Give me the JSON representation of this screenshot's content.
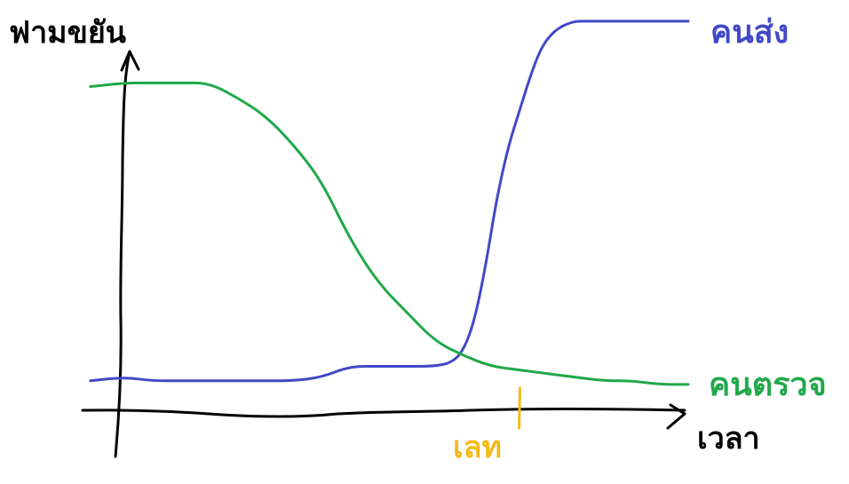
{
  "chart_data": {
    "type": "line",
    "ylabel": "ฟามขยัน",
    "xlabel": "เวลา",
    "x_range": [
      0,
      100
    ],
    "y_range": [
      0,
      100
    ],
    "series": [
      {
        "name": "คนส่ง",
        "color": "#4149c6",
        "x": [
          -6,
          0,
          5,
          10,
          15,
          20,
          25,
          30,
          35,
          40,
          45,
          50,
          55,
          58,
          60,
          62,
          64,
          66,
          68,
          70,
          72,
          74,
          76,
          78,
          80,
          82,
          84,
          86,
          88,
          90,
          92,
          94,
          96,
          100
        ],
        "y": [
          2,
          3,
          2,
          2,
          2,
          2,
          2,
          2,
          3,
          6,
          6,
          6,
          6,
          7,
          10,
          18,
          33,
          52,
          66,
          76,
          86,
          94,
          98,
          100,
          101,
          101,
          101,
          101,
          101,
          101,
          101,
          101,
          101,
          101
        ]
      },
      {
        "name": "คนตรวจ",
        "color": "#21a84b",
        "x": [
          -6,
          0,
          5,
          10,
          15,
          20,
          25,
          30,
          35,
          40,
          45,
          50,
          55,
          60,
          65,
          70,
          75,
          80,
          85,
          90,
          95,
          100
        ],
        "y": [
          83,
          84,
          84,
          84,
          84,
          80,
          75,
          67,
          57,
          41,
          29,
          21,
          13,
          9,
          6,
          5,
          4,
          3,
          2,
          2,
          1,
          1
        ]
      }
    ],
    "markers": [
      {
        "label": "เลท",
        "x": 70,
        "color": "#f5b91a"
      }
    ]
  }
}
